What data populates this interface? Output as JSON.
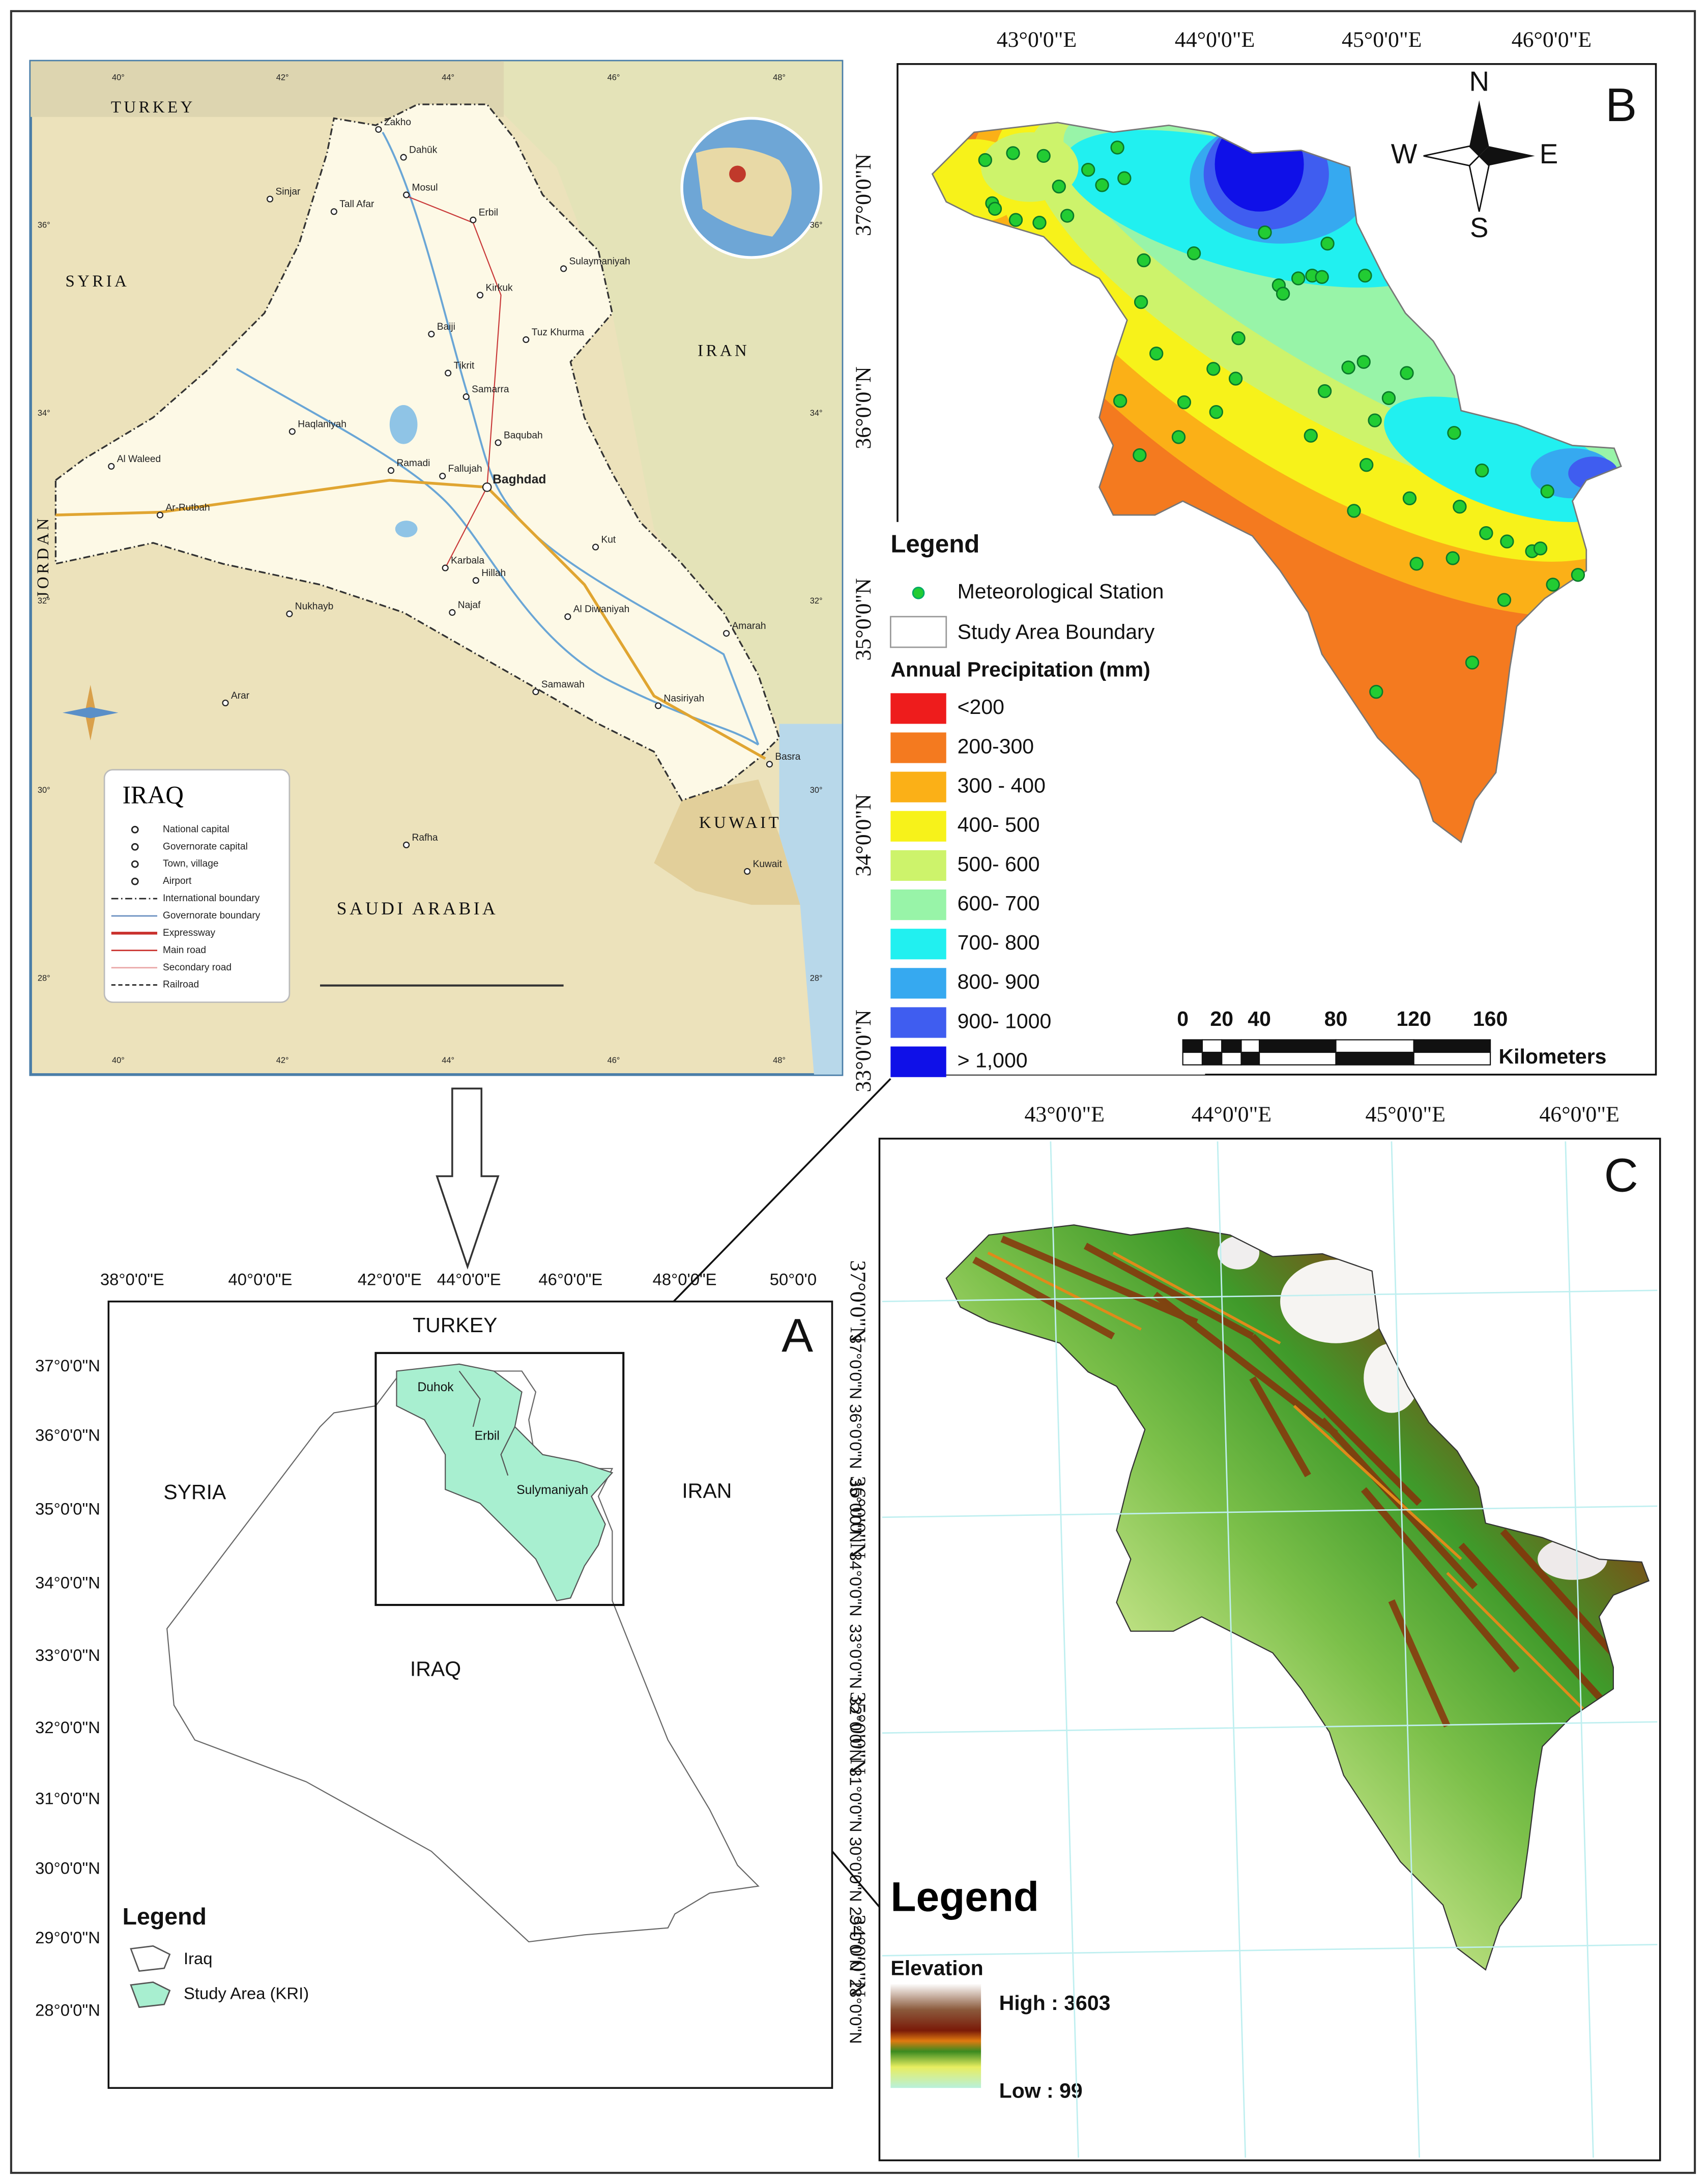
{
  "iraq_map": {
    "title": "IRAQ",
    "countries": [
      "TURKEY",
      "SYRIA",
      "IRAN",
      "SAUDI ARABIA",
      "KUWAIT",
      "JORDAN"
    ],
    "cities": [
      "Zakho",
      "Dahūk",
      "Mosul",
      "Erbil",
      "Kirkuk",
      "Sulaymaniyah",
      "Tikrit",
      "Samarra",
      "Baqubah",
      "Baghdad",
      "Ramadi",
      "Fallujah",
      "Karbala",
      "Hillah",
      "Najaf",
      "Al Diwaniyah",
      "Kut",
      "Amarah",
      "Samawah",
      "Nasiriyah",
      "Basra",
      "Kuwait",
      "Ar-Rutbah",
      "Al Waleed",
      "Nukhayb",
      "Arar",
      "Rafha",
      "Haqlaniyah",
      "Tall Afar",
      "Sinjar",
      "Baiji",
      "Tuz Khurma"
    ],
    "legend": [
      "National capital",
      "Governorate capital",
      "Town, village",
      "Airport",
      "International boundary",
      "Governorate boundary",
      "Expressway",
      "Main road",
      "Secondary road",
      "Railroad"
    ],
    "lat_labels": [
      "36°",
      "34°",
      "32°",
      "30°",
      "28°"
    ],
    "lon_labels": [
      "40°",
      "42°",
      "44°",
      "46°",
      "48°"
    ]
  },
  "panel_a": {
    "letter": "A",
    "lon_labels": [
      "38°0'0\"E",
      "40°0'0\"E",
      "42°0'0\"E",
      "44°0'0\"E",
      "46°0'0\"E",
      "48°0'0\"E",
      "50°0'0"
    ],
    "lat_labels": [
      "37°0'0\"N",
      "36°0'0\"N",
      "35°0'0\"N",
      "34°0'0\"N",
      "33°0'0\"N",
      "32°0'0\"N",
      "31°0'0\"N",
      "30°0'0\"N",
      "29°0'0\"N",
      "28°0'0\"N"
    ],
    "countries": [
      "TURKEY",
      "SYRIA",
      "IRAN",
      "IRAQ"
    ],
    "regions": [
      "Duhok",
      "Erbil",
      "Sulymaniyah"
    ],
    "legend": {
      "title": "Legend",
      "items": [
        "Iraq",
        "Study Area (KRI)"
      ]
    }
  },
  "panel_b": {
    "letter": "B",
    "lon_labels": [
      "43°0'0\"E",
      "44°0'0\"E",
      "45°0'0\"E",
      "46°0'0\"E"
    ],
    "lat_labels": [
      "37°0'0\"N",
      "36°0'0\"N",
      "35°0'0\"N",
      "34°0'0\"N",
      "33°0'0\"N"
    ],
    "compass": [
      "N",
      "S",
      "W",
      "E"
    ],
    "legend": {
      "title": "Legend",
      "station": "Meteorological Station",
      "boundary": "Study Area Boundary",
      "precip_title": "Annual Precipitation (mm)",
      "classes": [
        {
          "label": "<200",
          "color": "#ee1c1c"
        },
        {
          "label": "200-300",
          "color": "#f47a1f"
        },
        {
          "label": "300 - 400",
          "color": "#fbb017"
        },
        {
          "label": "400- 500",
          "color": "#f7f21a"
        },
        {
          "label": "500- 600",
          "color": "#cdf36b"
        },
        {
          "label": "600- 700",
          "color": "#98f4a8"
        },
        {
          "label": "700- 800",
          "color": "#21f0f0"
        },
        {
          "label": "800- 900",
          "color": "#36a9f0"
        },
        {
          "label": "900- 1000",
          "color": "#3f5df0"
        },
        {
          "label": "> 1,000",
          "color": "#0f10e8"
        }
      ]
    },
    "scale": {
      "ticks": [
        "0",
        "20",
        "40",
        "80",
        "120",
        "160"
      ],
      "unit": "Kilometers"
    }
  },
  "panel_c": {
    "letter": "C",
    "lon_labels": [
      "43°0'0\"E",
      "44°0'0\"E",
      "45°0'0\"E",
      "46°0'0\"E"
    ],
    "lat_labels": [
      "37°0'0\"N",
      "36°0'0\"N",
      "35°0'0\"N",
      "34°0'0\"N"
    ],
    "legend": {
      "title": "Legend",
      "elevation": "Elevation",
      "high": "High : 3603",
      "low": "Low : 99"
    }
  }
}
